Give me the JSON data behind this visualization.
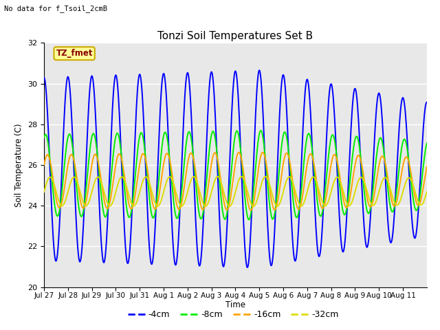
{
  "title": "Tonzi Soil Temperatures Set B",
  "subtitle": "No data for f_Tsoil_2cmB",
  "annotation": "TZ_fmet",
  "ylabel": "Soil Temperature (C)",
  "xlabel": "Time",
  "ylim": [
    20,
    32
  ],
  "yticks": [
    20,
    22,
    24,
    26,
    28,
    30,
    32
  ],
  "background_color": "#e8e8e8",
  "colors": {
    "-4cm": "#0000ff",
    "-8cm": "#00ee00",
    "-16cm": "#ffa500",
    "-32cm": "#dddd00"
  },
  "x_tick_labels": [
    "Jul 27",
    "Jul 28",
    "Jul 29",
    "Jul 30",
    "Jul 31",
    "Aug 1",
    "Aug 2",
    "Aug 3",
    "Aug 4",
    "Aug 5",
    "Aug 6",
    "Aug 7",
    "Aug 8",
    "Aug 9",
    "Aug 10",
    "Aug 11"
  ],
  "num_days": 16
}
